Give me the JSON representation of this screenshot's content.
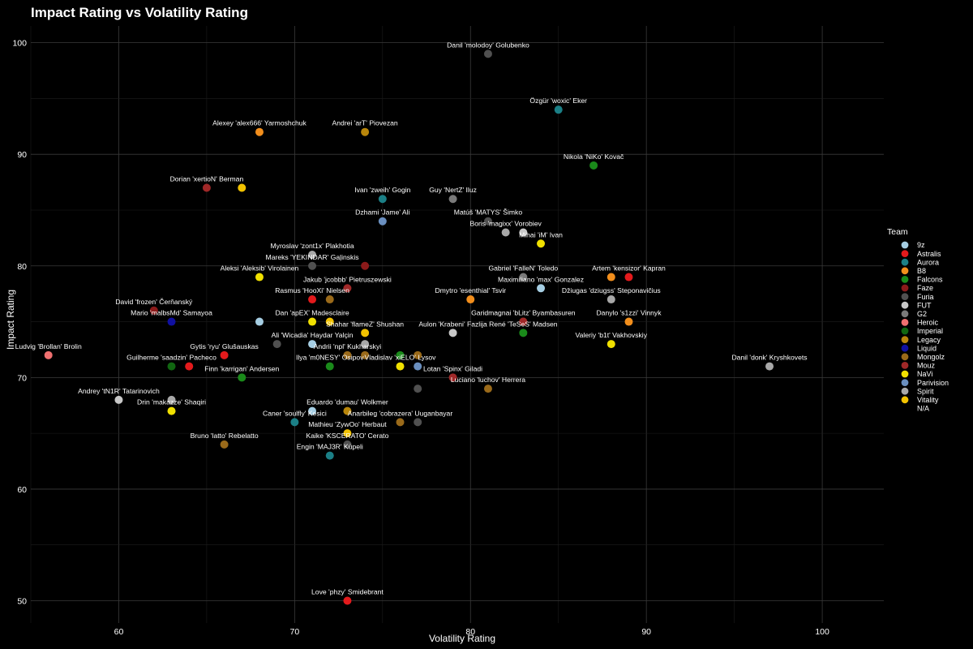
{
  "chart_data": {
    "type": "scatter",
    "title": "Impact Rating vs Volatility Rating",
    "xlabel": "Volatility Rating",
    "ylabel": "Impact Rating",
    "xlim": [
      55,
      103.5
    ],
    "ylim": [
      48,
      101.5
    ],
    "xticks": [
      60,
      70,
      80,
      90,
      100
    ],
    "yticks": [
      50,
      60,
      70,
      80,
      90,
      100
    ],
    "grid": true,
    "legend": {
      "title": "Team",
      "position": "right"
    },
    "teams": [
      {
        "name": "9z",
        "color": "#a6cee3"
      },
      {
        "name": "Astralis",
        "color": "#e31a1c"
      },
      {
        "name": "Aurora",
        "color": "#1b7f86"
      },
      {
        "name": "B8",
        "color": "#f28e1c"
      },
      {
        "name": "Falcons",
        "color": "#1a8a1a"
      },
      {
        "name": "Faze",
        "color": "#8b1a1a"
      },
      {
        "name": "Furia",
        "color": "#505050"
      },
      {
        "name": "FUT",
        "color": "#c8c8c8"
      },
      {
        "name": "G2",
        "color": "#7a7a7a"
      },
      {
        "name": "Heroic",
        "color": "#f07070"
      },
      {
        "name": "Imperial",
        "color": "#116611"
      },
      {
        "name": "Legacy",
        "color": "#b8860b"
      },
      {
        "name": "Liquid",
        "color": "#1010a0"
      },
      {
        "name": "Mongolz",
        "color": "#9a6a1a"
      },
      {
        "name": "Mouz",
        "color": "#a02828"
      },
      {
        "name": "NaVi",
        "color": "#f0e000"
      },
      {
        "name": "Parivision",
        "color": "#6a8fbf"
      },
      {
        "name": "Spirit",
        "color": "#a8a8a8"
      },
      {
        "name": "Vitality",
        "color": "#f2c200"
      },
      {
        "name": "N/A",
        "color": "#000000"
      }
    ],
    "points": [
      {
        "label": "Danil 'molodoy' Golubenko",
        "team": "Furia",
        "x": 81,
        "y": 99
      },
      {
        "label": "Özgür 'woxic' Eker",
        "team": "Aurora",
        "x": 85,
        "y": 94
      },
      {
        "label": "Alexey 'alex666' Yarmoshchuk",
        "team": "B8",
        "x": 68,
        "y": 92
      },
      {
        "label": "Andrei 'arT' Piovezan",
        "team": "Legacy",
        "x": 74,
        "y": 92
      },
      {
        "label": "Nikola 'NiKo' Kovač",
        "team": "Falcons",
        "x": 87,
        "y": 89
      },
      {
        "label": "Dorian 'xertioN' Berman",
        "team": "Mouz",
        "x": 65,
        "y": 87
      },
      {
        "label": "",
        "team": "Vitality",
        "x": 67,
        "y": 87
      },
      {
        "label": "Guy 'NertZ' Iluz",
        "team": "G2",
        "x": 79,
        "y": 86
      },
      {
        "label": "Ivan 'zweih' Gogin",
        "team": "Aurora",
        "x": 75,
        "y": 86
      },
      {
        "label": "Dzhami 'Jame' Ali",
        "team": "Parivision",
        "x": 75,
        "y": 84
      },
      {
        "label": "Matúš 'MATYS' Šimko",
        "team": "Furia",
        "x": 81,
        "y": 84
      },
      {
        "label": "Boris 'magixx' Vorobiev",
        "team": "Spirit",
        "x": 82,
        "y": 83
      },
      {
        "label": "",
        "team": "FUT",
        "x": 83,
        "y": 83
      },
      {
        "label": "Mihai 'iM' Ivan",
        "team": "NaVi",
        "x": 84,
        "y": 82
      },
      {
        "label": "Myroslav 'zont1x' Plakhotia",
        "team": "Spirit",
        "x": 71,
        "y": 81
      },
      {
        "label": "Mareks 'YEKINDAR' Gaļinskis",
        "team": "Furia",
        "x": 71,
        "y": 80
      },
      {
        "label": "",
        "team": "Faze",
        "x": 74,
        "y": 80
      },
      {
        "label": "Gabriel 'FalleN' Toledo",
        "team": "G2",
        "x": 83,
        "y": 79
      },
      {
        "label": "Artem 'kensizor' Kapran",
        "team": "Astralis",
        "x": 89,
        "y": 79
      },
      {
        "label": "",
        "team": "B8",
        "x": 88,
        "y": 79
      },
      {
        "label": "Aleksi 'Aleksib' Virolainen",
        "team": "NaVi",
        "x": 68,
        "y": 79
      },
      {
        "label": "Maximiliano 'max' Gonzalez",
        "team": "9z",
        "x": 84,
        "y": 78
      },
      {
        "label": "Jakub 'jcobbb' Pietruszewski",
        "team": "Mouz",
        "x": 73,
        "y": 78
      },
      {
        "label": "Rasmus 'HooXi' Nielsen",
        "team": "Astralis",
        "x": 71,
        "y": 77
      },
      {
        "label": "",
        "team": "Mongolz",
        "x": 72,
        "y": 77
      },
      {
        "label": "Dmytro 'esenthial' Tsvir",
        "team": "B8",
        "x": 80,
        "y": 77
      },
      {
        "label": "Džiugas 'dziugss' Steponavičius",
        "team": "Spirit",
        "x": 88,
        "y": 77
      },
      {
        "label": "David 'frozen' Čerňanský",
        "team": "Faze",
        "x": 62,
        "y": 76
      },
      {
        "label": "Mario 'malbsMd' Samayoa",
        "team": "Liquid",
        "x": 63,
        "y": 75
      },
      {
        "label": "",
        "team": "9z",
        "x": 68,
        "y": 75
      },
      {
        "label": "Dan 'apEX' Madesclaire",
        "team": "NaVi",
        "x": 71,
        "y": 75
      },
      {
        "label": "",
        "team": "Vitality",
        "x": 72,
        "y": 75
      },
      {
        "label": "Garidmagnai 'bLitz' Byambasuren",
        "team": "Mongolz",
        "x": 83,
        "y": 75
      },
      {
        "label": "",
        "team": "Mouz",
        "x": 83,
        "y": 75
      },
      {
        "label": "Danylo 's1zzi' Vinnyk",
        "team": "B8",
        "x": 89,
        "y": 75
      },
      {
        "label": "Shahar 'flameZ' Shushan",
        "team": "Vitality",
        "x": 74,
        "y": 74
      },
      {
        "label": "Aulon 'Krabeni' Fazlija",
        "team": "FUT",
        "x": 79,
        "y": 74
      },
      {
        "label": "René 'TeSeS' Madsen",
        "team": "Falcons",
        "x": 83,
        "y": 74
      },
      {
        "label": "Ali 'Wicadia' Haydar Yalçin",
        "team": "9z",
        "x": 71,
        "y": 73
      },
      {
        "label": "",
        "team": "Furia",
        "x": 69,
        "y": 73
      },
      {
        "label": "",
        "team": "Spirit",
        "x": 74,
        "y": 73
      },
      {
        "label": "Valeriy 'b1t' Vakhovskiy",
        "team": "NaVi",
        "x": 88,
        "y": 73
      },
      {
        "label": "Ludvig 'Brollan' Brolin",
        "team": "Heroic",
        "x": 56,
        "y": 72
      },
      {
        "label": "Gytis 'ryu' Glušauskas",
        "team": "Astralis",
        "x": 66,
        "y": 72
      },
      {
        "label": "Andrii 'npl' Kukharskyi",
        "team": "Mongolz",
        "x": 73,
        "y": 72
      },
      {
        "label": "",
        "team": "Mongolz",
        "x": 74,
        "y": 72
      },
      {
        "label": "",
        "team": "Falcons",
        "x": 76,
        "y": 72
      },
      {
        "label": "",
        "team": "Mongolz",
        "x": 77,
        "y": 72
      },
      {
        "label": "Guilherme 'saadzin' Pacheco",
        "team": "Imperial",
        "x": 63,
        "y": 71
      },
      {
        "label": "",
        "team": "Astralis",
        "x": 64,
        "y": 71
      },
      {
        "label": "Ilya 'm0NESY' Osipov",
        "team": "Falcons",
        "x": 72,
        "y": 71
      },
      {
        "label": "Vladislav 'xiELO' Lysov",
        "team": "NaVi",
        "x": 76,
        "y": 71
      },
      {
        "label": "",
        "team": "Parivision",
        "x": 77,
        "y": 71
      },
      {
        "label": "Danil 'donk' Kryshkovets",
        "team": "Spirit",
        "x": 97,
        "y": 71
      },
      {
        "label": "Finn 'karrigan' Andersen",
        "team": "Falcons",
        "x": 67,
        "y": 70
      },
      {
        "label": "Lotan 'Spinx' Giladi",
        "team": "Mouz",
        "x": 79,
        "y": 70
      },
      {
        "label": "Luciano 'luchov' Herrera",
        "team": "Mongolz",
        "x": 81,
        "y": 69
      },
      {
        "label": "",
        "team": "Furia",
        "x": 77,
        "y": 69
      },
      {
        "label": "Andrey 'tN1R' Tatarinovich",
        "team": "FUT",
        "x": 60,
        "y": 68
      },
      {
        "label": "",
        "team": "Spirit",
        "x": 63,
        "y": 68
      },
      {
        "label": "Drin 'makazze' Shaqiri",
        "team": "NaVi",
        "x": 63,
        "y": 67
      },
      {
        "label": "",
        "team": "9z",
        "x": 71,
        "y": 67
      },
      {
        "label": "Eduardo 'dumau' Wolkmer",
        "team": "Legacy",
        "x": 73,
        "y": 67
      },
      {
        "label": "Caner 'soulfly' Kesici",
        "team": "Aurora",
        "x": 70,
        "y": 66
      },
      {
        "label": "Anarbileg 'cobrazera' Uuganbayar",
        "team": "Mongolz",
        "x": 76,
        "y": 66
      },
      {
        "label": "",
        "team": "Furia",
        "x": 77,
        "y": 66
      },
      {
        "label": "Mathieu 'ZywOo' Herbaut",
        "team": "Vitality",
        "x": 73,
        "y": 65
      },
      {
        "label": "Bruno 'latto' Rebelatto",
        "team": "Mongolz",
        "x": 66,
        "y": 64
      },
      {
        "label": "Kaike 'KSCERATO' Cerato",
        "team": "Furia",
        "x": 73,
        "y": 64
      },
      {
        "label": "Engin 'MAJ3R' Küpeli",
        "team": "Aurora",
        "x": 72,
        "y": 63
      },
      {
        "label": "Love 'phzy' Smidebrant",
        "team": "Astralis",
        "x": 73,
        "y": 50
      }
    ]
  }
}
